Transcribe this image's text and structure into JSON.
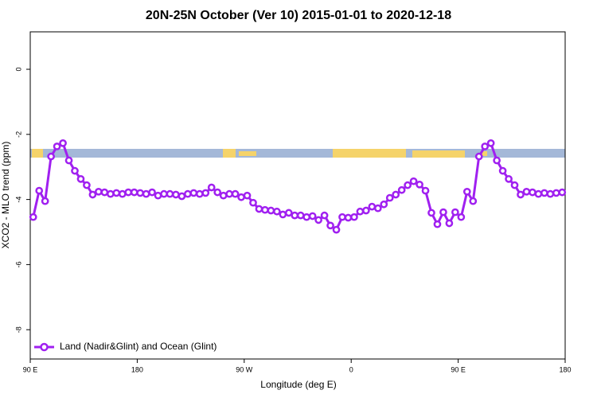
{
  "chart_data": {
    "type": "line",
    "title": "20N-25N October (Ver 10)   2015-01-01 to 2020-12-18",
    "x_label": "Longitude (deg E)",
    "y_label": "XCO2 - MLO trend (ppm)",
    "xlim": [
      90,
      540
    ],
    "xticks": [
      {
        "value": 90,
        "label": "90 E"
      },
      {
        "value": 180,
        "label": "180"
      },
      {
        "value": 270,
        "label": "90 W"
      },
      {
        "value": 360,
        "label": "0"
      },
      {
        "value": 450,
        "label": "90 E"
      },
      {
        "value": 540,
        "label": "180"
      }
    ],
    "ylim": [
      -8.9,
      1.15
    ],
    "yticks": [
      0,
      -2,
      -4,
      -6,
      -8
    ],
    "legend": "bottom-left",
    "x": [
      92.5,
      97.5,
      102.5,
      107.5,
      112.5,
      117.5,
      122.5,
      127.5,
      132.5,
      137.5,
      142.5,
      147.5,
      152.5,
      157.5,
      162.5,
      167.5,
      172.5,
      177.5,
      182.5,
      187.5,
      192.5,
      197.5,
      202.5,
      207.5,
      212.5,
      217.5,
      222.5,
      227.5,
      232.5,
      237.5,
      242.5,
      247.5,
      252.5,
      257.5,
      262.5,
      267.5,
      272.5,
      277.5,
      282.5,
      287.5,
      292.5,
      297.5,
      302.5,
      307.5,
      312.5,
      317.5,
      322.5,
      327.5,
      332.5,
      337.5,
      342.5,
      347.5,
      352.5,
      357.5,
      362.5,
      367.5,
      372.5,
      377.5,
      382.5,
      387.5,
      392.5,
      397.5,
      402.5,
      407.5,
      412.5,
      417.5,
      422.5,
      427.5,
      432.5,
      437.5,
      442.5,
      447.5,
      452.5,
      457.5,
      462.5,
      467.5,
      472.5,
      477.5,
      482.5,
      487.5,
      492.5,
      497.5,
      502.5,
      507.5,
      512.5,
      517.5,
      522.5,
      527.5,
      532.5,
      537.5
    ],
    "series": [
      {
        "name": "Land (Nadir&Glint) and Ocean (Glint)",
        "color": "#a020f0",
        "values": [
          -4.54,
          -3.73,
          -4.05,
          -2.68,
          -2.37,
          -2.27,
          -2.8,
          -3.12,
          -3.37,
          -3.56,
          -3.85,
          -3.76,
          -3.78,
          -3.83,
          -3.8,
          -3.83,
          -3.78,
          -3.78,
          -3.8,
          -3.83,
          -3.78,
          -3.88,
          -3.83,
          -3.83,
          -3.85,
          -3.9,
          -3.83,
          -3.8,
          -3.83,
          -3.8,
          -3.63,
          -3.78,
          -3.88,
          -3.83,
          -3.83,
          -3.93,
          -3.88,
          -4.1,
          -4.29,
          -4.32,
          -4.34,
          -4.37,
          -4.46,
          -4.41,
          -4.49,
          -4.49,
          -4.54,
          -4.51,
          -4.63,
          -4.49,
          -4.8,
          -4.93,
          -4.54,
          -4.56,
          -4.54,
          -4.37,
          -4.34,
          -4.22,
          -4.27,
          -4.15,
          -3.95,
          -3.85,
          -3.71,
          -3.56,
          -3.44,
          -3.54,
          -3.73,
          -4.41,
          -4.76,
          -4.39,
          -4.73,
          -4.39,
          -4.54,
          -3.76,
          -4.05,
          -2.68,
          -2.37,
          -2.27,
          -2.8,
          -3.12,
          -3.37,
          -3.56,
          -3.85,
          -3.76,
          -3.78,
          -3.83,
          -3.8,
          -3.83,
          -3.8,
          -3.78
        ]
      }
    ]
  }
}
